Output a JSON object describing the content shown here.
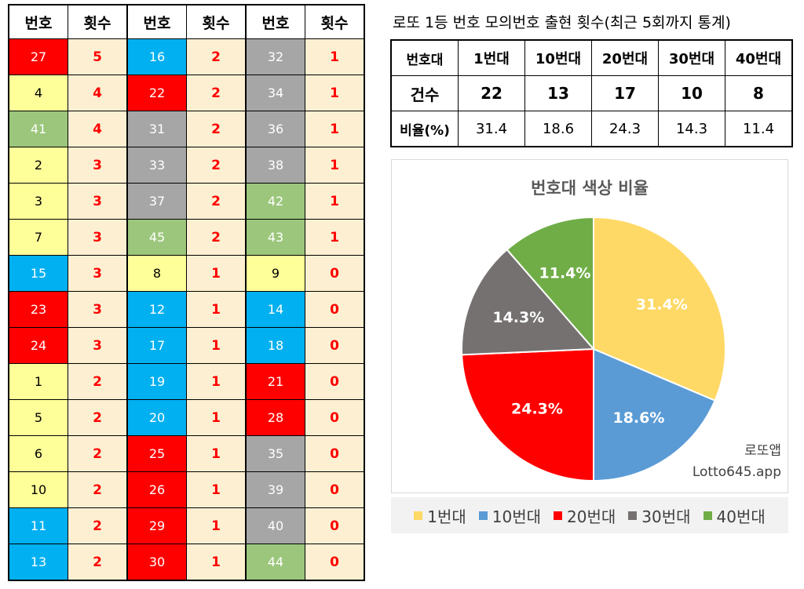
{
  "table": {
    "headers": [
      "번호",
      "횟수",
      "번호",
      "횟수",
      "번호",
      "횟수"
    ],
    "rows": [
      [
        {
          "n": "27",
          "c": "#ff0000",
          "t": "#ffffff"
        },
        "5",
        {
          "n": "16",
          "c": "#00b0f0",
          "t": "#ffffff"
        },
        "2",
        {
          "n": "32",
          "c": "#a6a6a6",
          "t": "#ffffff"
        },
        "1"
      ],
      [
        {
          "n": "4",
          "c": "#ffff99",
          "t": "#000000"
        },
        "4",
        {
          "n": "22",
          "c": "#ff0000",
          "t": "#ffffff"
        },
        "2",
        {
          "n": "34",
          "c": "#a6a6a6",
          "t": "#ffffff"
        },
        "1"
      ],
      [
        {
          "n": "41",
          "c": "#9bc67b",
          "t": "#ffffff"
        },
        "4",
        {
          "n": "31",
          "c": "#a6a6a6",
          "t": "#ffffff"
        },
        "2",
        {
          "n": "36",
          "c": "#a6a6a6",
          "t": "#ffffff"
        },
        "1"
      ],
      [
        {
          "n": "2",
          "c": "#ffff99",
          "t": "#000000"
        },
        "3",
        {
          "n": "33",
          "c": "#a6a6a6",
          "t": "#ffffff"
        },
        "2",
        {
          "n": "38",
          "c": "#a6a6a6",
          "t": "#ffffff"
        },
        "1"
      ],
      [
        {
          "n": "3",
          "c": "#ffff99",
          "t": "#000000"
        },
        "3",
        {
          "n": "37",
          "c": "#a6a6a6",
          "t": "#ffffff"
        },
        "2",
        {
          "n": "42",
          "c": "#9bc67b",
          "t": "#ffffff"
        },
        "1"
      ],
      [
        {
          "n": "7",
          "c": "#ffff99",
          "t": "#000000"
        },
        "3",
        {
          "n": "45",
          "c": "#9bc67b",
          "t": "#ffffff"
        },
        "2",
        {
          "n": "43",
          "c": "#9bc67b",
          "t": "#ffffff"
        },
        "1"
      ],
      [
        {
          "n": "15",
          "c": "#00b0f0",
          "t": "#ffffff"
        },
        "3",
        {
          "n": "8",
          "c": "#ffff99",
          "t": "#000000"
        },
        "1",
        {
          "n": "9",
          "c": "#ffff99",
          "t": "#000000"
        },
        "0"
      ],
      [
        {
          "n": "23",
          "c": "#ff0000",
          "t": "#ffffff"
        },
        "3",
        {
          "n": "12",
          "c": "#00b0f0",
          "t": "#ffffff"
        },
        "1",
        {
          "n": "14",
          "c": "#00b0f0",
          "t": "#ffffff"
        },
        "0"
      ],
      [
        {
          "n": "24",
          "c": "#ff0000",
          "t": "#ffffff"
        },
        "3",
        {
          "n": "17",
          "c": "#00b0f0",
          "t": "#ffffff"
        },
        "1",
        {
          "n": "18",
          "c": "#00b0f0",
          "t": "#ffffff"
        },
        "0"
      ],
      [
        {
          "n": "1",
          "c": "#ffff99",
          "t": "#000000"
        },
        "2",
        {
          "n": "19",
          "c": "#00b0f0",
          "t": "#ffffff"
        },
        "1",
        {
          "n": "21",
          "c": "#ff0000",
          "t": "#ffffff"
        },
        "0"
      ],
      [
        {
          "n": "5",
          "c": "#ffff99",
          "t": "#000000"
        },
        "2",
        {
          "n": "20",
          "c": "#00b0f0",
          "t": "#ffffff"
        },
        "1",
        {
          "n": "28",
          "c": "#ff0000",
          "t": "#ffffff"
        },
        "0"
      ],
      [
        {
          "n": "6",
          "c": "#ffff99",
          "t": "#000000"
        },
        "2",
        {
          "n": "25",
          "c": "#ff0000",
          "t": "#ffffff"
        },
        "1",
        {
          "n": "35",
          "c": "#a6a6a6",
          "t": "#ffffff"
        },
        "0"
      ],
      [
        {
          "n": "10",
          "c": "#ffff99",
          "t": "#000000"
        },
        "2",
        {
          "n": "26",
          "c": "#ff0000",
          "t": "#ffffff"
        },
        "1",
        {
          "n": "39",
          "c": "#a6a6a6",
          "t": "#ffffff"
        },
        "0"
      ],
      [
        {
          "n": "11",
          "c": "#00b0f0",
          "t": "#ffffff"
        },
        "2",
        {
          "n": "29",
          "c": "#ff0000",
          "t": "#ffffff"
        },
        "1",
        {
          "n": "40",
          "c": "#a6a6a6",
          "t": "#ffffff"
        },
        "0"
      ],
      [
        {
          "n": "13",
          "c": "#00b0f0",
          "t": "#ffffff"
        },
        "2",
        {
          "n": "30",
          "c": "#ff0000",
          "t": "#ffffff"
        },
        "1",
        {
          "n": "44",
          "c": "#9bc67b",
          "t": "#ffffff"
        },
        "0"
      ]
    ]
  },
  "summary": {
    "title": "로또 1등 번호 모의번호 출현 횟수(최근 5회까지 통계)",
    "header_label": "번호대",
    "columns": [
      "1번대",
      "10번대",
      "20번대",
      "30번대",
      "40번대"
    ],
    "count_label": "건수",
    "counts": [
      "22",
      "13",
      "17",
      "10",
      "8"
    ],
    "ratio_label": "비율(%)",
    "ratios": [
      "31.4",
      "18.6",
      "24.3",
      "14.3",
      "11.4"
    ]
  },
  "chart_data": {
    "type": "pie",
    "title": "번호대 색상 비율",
    "categories": [
      "1번대",
      "10번대",
      "20번대",
      "30번대",
      "40번대"
    ],
    "values": [
      31.4,
      18.6,
      24.3,
      14.3,
      11.4
    ],
    "labels": [
      "31.4%",
      "18.6%",
      "24.3%",
      "14.3%",
      "11.4%"
    ],
    "colors": [
      "#ffd966",
      "#5b9bd5",
      "#ff0000",
      "#767171",
      "#70ad47"
    ],
    "legend_position": "bottom"
  },
  "watermark": {
    "line1": "로또앱",
    "line2": "Lotto645.app"
  }
}
